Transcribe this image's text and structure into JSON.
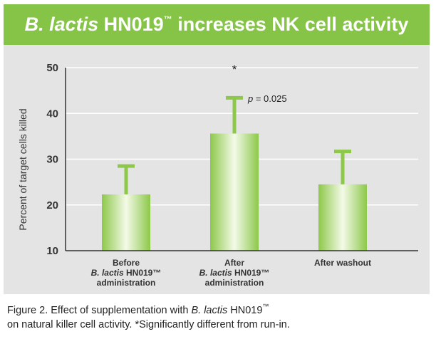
{
  "header": {
    "title_italic": "B. lactis",
    "title_rest": " HN019",
    "title_tm": "™",
    "title_end": " increases NK cell activity"
  },
  "chart_data": {
    "type": "bar",
    "title": "B. lactis HN019™ increases NK cell activity",
    "ylabel": "Percent of target cells killed",
    "xlabel": "",
    "ylim": [
      10,
      50
    ],
    "yticks": [
      "10",
      "20",
      "30",
      "40",
      "50"
    ],
    "grid": true,
    "categories": [
      {
        "line1": "Before",
        "line2_italic": "B. lactis",
        "line2_rest": " HN019™",
        "line3": "administration"
      },
      {
        "line1": "After",
        "line2_italic": "B. lactis",
        "line2_rest": " HN019™",
        "line3": "administration"
      },
      {
        "line1": "After washout",
        "line2_italic": "",
        "line2_rest": "",
        "line3": ""
      }
    ],
    "values": [
      22.3,
      35.6,
      24.5
    ],
    "error_upper": [
      28.5,
      43.4,
      31.7
    ],
    "annotations": {
      "significance_marker": "*",
      "p_label_italic": "p",
      "p_label_rest": " = 0.025"
    },
    "colors": {
      "bar": "#8dc84b",
      "bar_highlight": "#f4fae8",
      "panel": "#e3e4e3",
      "grid": "#ffffff",
      "axis": "#333333"
    }
  },
  "caption": {
    "line1_prefix": "Figure 2.  Effect of supplementation with ",
    "line1_italic": "B. lactis",
    "line1_rest": " HN019",
    "line1_tm": "™",
    "line2": "on natural killer cell activity. *Significantly different from run-in."
  }
}
